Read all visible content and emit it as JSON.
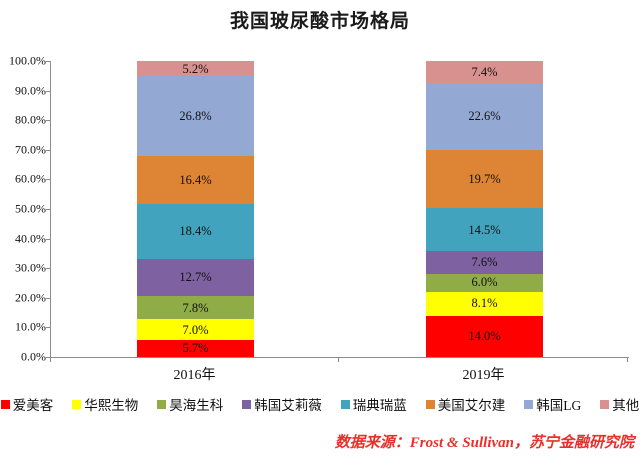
{
  "title": "我国玻尿酸市场格局",
  "source_note": "数据来源：Frost & Sullivan，苏宁金融研究院",
  "chart_data": {
    "type": "bar",
    "stacked": true,
    "title": "我国玻尿酸市场格局",
    "categories": [
      "2016年",
      "2019年"
    ],
    "series": [
      {
        "name": "爱美客",
        "color": "#ff0000",
        "values": [
          5.7,
          14.0
        ]
      },
      {
        "name": "华熙生物",
        "color": "#ffff00",
        "values": [
          7.0,
          8.1
        ]
      },
      {
        "name": "昊海生科",
        "color": "#8fac46",
        "values": [
          7.8,
          6.0
        ]
      },
      {
        "name": "韩国艾莉薇",
        "color": "#7d61a1",
        "values": [
          12.7,
          7.6
        ]
      },
      {
        "name": "瑞典瑞蓝",
        "color": "#41a3be",
        "values": [
          18.4,
          14.5
        ]
      },
      {
        "name": "美国艾尔建",
        "color": "#dd8435",
        "values": [
          16.4,
          19.7
        ]
      },
      {
        "name": "韩国LG",
        "color": "#93a9d4",
        "values": [
          26.8,
          22.6
        ]
      },
      {
        "name": "其他",
        "color": "#d9918f",
        "values": [
          5.2,
          7.4
        ]
      }
    ],
    "xlabel": "",
    "ylabel": "",
    "ylim": [
      0,
      100
    ],
    "ytick_step": 10,
    "ytick_format": "one_decimal_percent",
    "data_label_format": "one_decimal_percent",
    "grid": false,
    "legend_position": "bottom",
    "axis_color": "#8c8c8c",
    "label_color": "#111111",
    "source_color": "#e8302a"
  }
}
